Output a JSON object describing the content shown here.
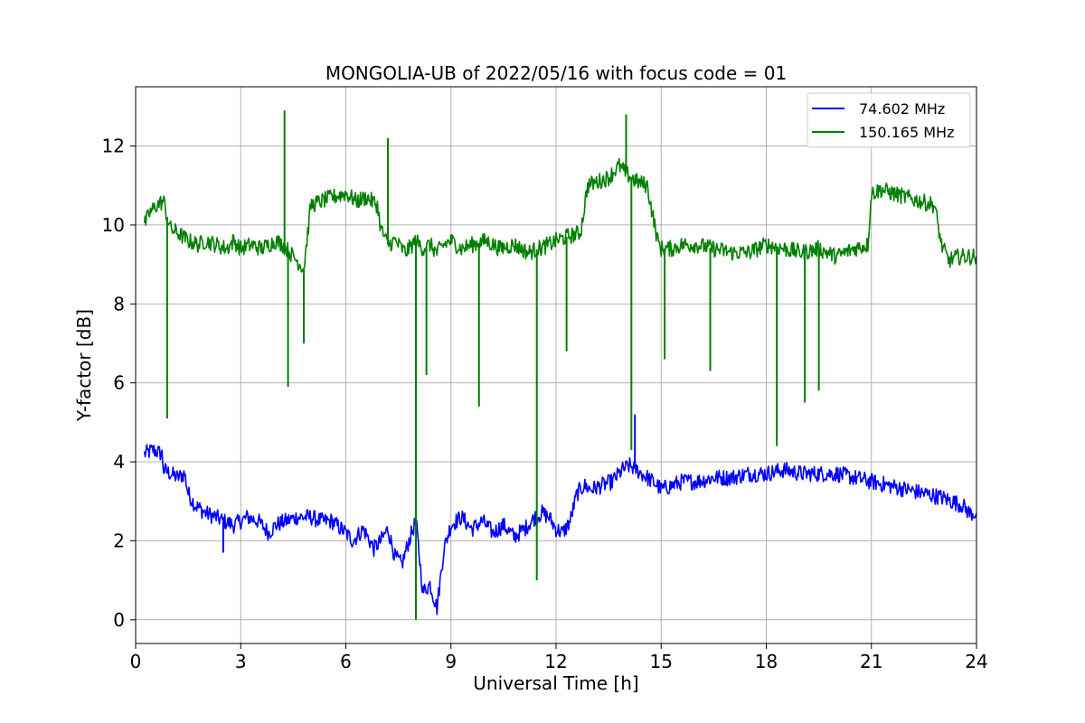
{
  "chart_data": {
    "type": "line",
    "title": "MONGOLIA-UB of 2022/05/16 with focus code = 01",
    "xlabel": "Universal Time [h]",
    "ylabel": "Y-factor [dB]",
    "xlim": [
      0,
      24
    ],
    "ylim": [
      -0.6,
      13.5
    ],
    "xticks": [
      0,
      3,
      6,
      9,
      12,
      15,
      18,
      21,
      24
    ],
    "yticks": [
      0,
      2,
      4,
      6,
      8,
      10,
      12
    ],
    "grid": true,
    "legend_position": "upper-right",
    "series": [
      {
        "name": "74.602 MHz",
        "color": "#0000ff",
        "x": [
          0.25,
          0.5,
          0.75,
          0.8,
          1.0,
          1.2,
          1.4,
          1.5,
          1.7,
          2.0,
          2.3,
          2.5,
          2.8,
          3.0,
          3.2,
          3.5,
          3.8,
          4.0,
          4.3,
          4.6,
          5.0,
          5.3,
          5.6,
          6.0,
          6.2,
          6.5,
          6.8,
          7.0,
          7.2,
          7.4,
          7.6,
          7.8,
          8.0,
          8.2,
          8.4,
          8.6,
          8.8,
          9.0,
          9.3,
          9.6,
          9.9,
          10.2,
          10.5,
          10.8,
          11.1,
          11.4,
          11.6,
          11.8,
          12.0,
          12.2,
          12.4,
          12.6,
          12.8,
          13.0,
          13.3,
          13.6,
          13.9,
          14.1,
          14.3,
          14.6,
          14.9,
          15.0,
          15.3,
          15.6,
          16.0,
          16.5,
          17.0,
          17.5,
          18.0,
          18.5,
          19.0,
          19.5,
          20.0,
          20.5,
          21.0,
          21.5,
          22.0,
          22.5,
          23.0,
          23.3,
          23.6,
          23.8,
          24.0
        ],
        "y": [
          4.2,
          4.3,
          4.2,
          3.8,
          3.7,
          3.6,
          3.7,
          3.2,
          2.9,
          2.7,
          2.6,
          2.5,
          2.4,
          2.5,
          2.6,
          2.5,
          2.2,
          2.4,
          2.5,
          2.6,
          2.6,
          2.5,
          2.5,
          2.2,
          2.0,
          2.3,
          1.8,
          2.0,
          2.3,
          1.6,
          1.4,
          2.0,
          2.5,
          0.7,
          0.9,
          0.3,
          1.8,
          2.4,
          2.6,
          2.3,
          2.5,
          2.2,
          2.4,
          2.1,
          2.3,
          2.6,
          2.7,
          2.6,
          2.3,
          2.2,
          2.5,
          3.2,
          3.4,
          3.3,
          3.4,
          3.5,
          3.8,
          3.9,
          3.8,
          3.6,
          3.4,
          3.3,
          3.4,
          3.5,
          3.5,
          3.6,
          3.6,
          3.7,
          3.7,
          3.8,
          3.7,
          3.7,
          3.7,
          3.6,
          3.5,
          3.4,
          3.3,
          3.2,
          3.1,
          3.0,
          2.9,
          2.7,
          2.7
        ]
      },
      {
        "name": "150.165 MHz",
        "color": "#008000",
        "x": [
          0.25,
          0.4,
          0.6,
          0.8,
          0.9,
          1.0,
          1.2,
          1.5,
          1.8,
          2.0,
          2.3,
          2.6,
          2.8,
          3.0,
          3.3,
          3.6,
          4.0,
          4.2,
          4.5,
          4.8,
          5.0,
          5.3,
          5.6,
          6.0,
          6.3,
          6.6,
          6.9,
          7.0,
          7.2,
          7.4,
          7.7,
          8.0,
          8.2,
          8.4,
          8.6,
          8.8,
          9.0,
          9.3,
          9.6,
          10.0,
          10.4,
          10.8,
          11.2,
          11.5,
          11.8,
          12.0,
          12.3,
          12.7,
          12.9,
          13.2,
          13.5,
          13.8,
          14.0,
          14.3,
          14.6,
          14.9,
          15.0,
          15.3,
          15.6,
          16.0,
          16.5,
          17.0,
          17.5,
          18.0,
          18.5,
          19.0,
          19.5,
          20.0,
          20.5,
          20.9,
          21.0,
          21.3,
          21.6,
          22.0,
          22.4,
          22.8,
          23.0,
          23.2,
          23.5,
          23.8,
          24.0
        ],
        "y": [
          10.0,
          10.3,
          10.5,
          10.6,
          10.2,
          9.9,
          9.8,
          9.6,
          9.5,
          9.6,
          9.5,
          9.4,
          9.6,
          9.4,
          9.5,
          9.4,
          9.6,
          9.5,
          9.2,
          8.9,
          10.5,
          10.6,
          10.7,
          10.8,
          10.6,
          10.7,
          10.5,
          9.9,
          9.5,
          9.6,
          9.3,
          9.6,
          9.4,
          9.5,
          9.3,
          9.5,
          9.6,
          9.4,
          9.5,
          9.6,
          9.4,
          9.5,
          9.3,
          9.4,
          9.5,
          9.6,
          9.7,
          9.8,
          11.0,
          11.1,
          11.2,
          11.5,
          11.3,
          11.1,
          11.0,
          9.6,
          9.4,
          9.4,
          9.5,
          9.5,
          9.4,
          9.3,
          9.3,
          9.5,
          9.4,
          9.3,
          9.4,
          9.2,
          9.4,
          9.5,
          10.8,
          10.9,
          10.8,
          10.7,
          10.6,
          10.5,
          9.5,
          9.1,
          9.2,
          9.2,
          9.2
        ]
      }
    ],
    "spikes": [
      {
        "series": 1,
        "x": 0.9,
        "y": 5.1
      },
      {
        "series": 1,
        "x": 4.25,
        "y": 12.9
      },
      {
        "series": 1,
        "x": 4.35,
        "y": 5.9
      },
      {
        "series": 1,
        "x": 4.8,
        "y": 7.0
      },
      {
        "series": 1,
        "x": 7.2,
        "y": 12.2
      },
      {
        "series": 1,
        "x": 8.0,
        "y": 0.0
      },
      {
        "series": 1,
        "x": 8.3,
        "y": 6.2
      },
      {
        "series": 1,
        "x": 9.8,
        "y": 5.4
      },
      {
        "series": 1,
        "x": 11.45,
        "y": 1.0
      },
      {
        "series": 1,
        "x": 12.3,
        "y": 6.8
      },
      {
        "series": 1,
        "x": 14.0,
        "y": 12.8
      },
      {
        "series": 1,
        "x": 14.15,
        "y": 4.3
      },
      {
        "series": 1,
        "x": 15.1,
        "y": 6.6
      },
      {
        "series": 1,
        "x": 16.4,
        "y": 6.3
      },
      {
        "series": 1,
        "x": 18.3,
        "y": 4.4
      },
      {
        "series": 1,
        "x": 19.1,
        "y": 5.5
      },
      {
        "series": 1,
        "x": 19.5,
        "y": 5.8
      },
      {
        "series": 0,
        "x": 2.5,
        "y": 1.7
      },
      {
        "series": 0,
        "x": 14.25,
        "y": 5.2
      }
    ]
  }
}
